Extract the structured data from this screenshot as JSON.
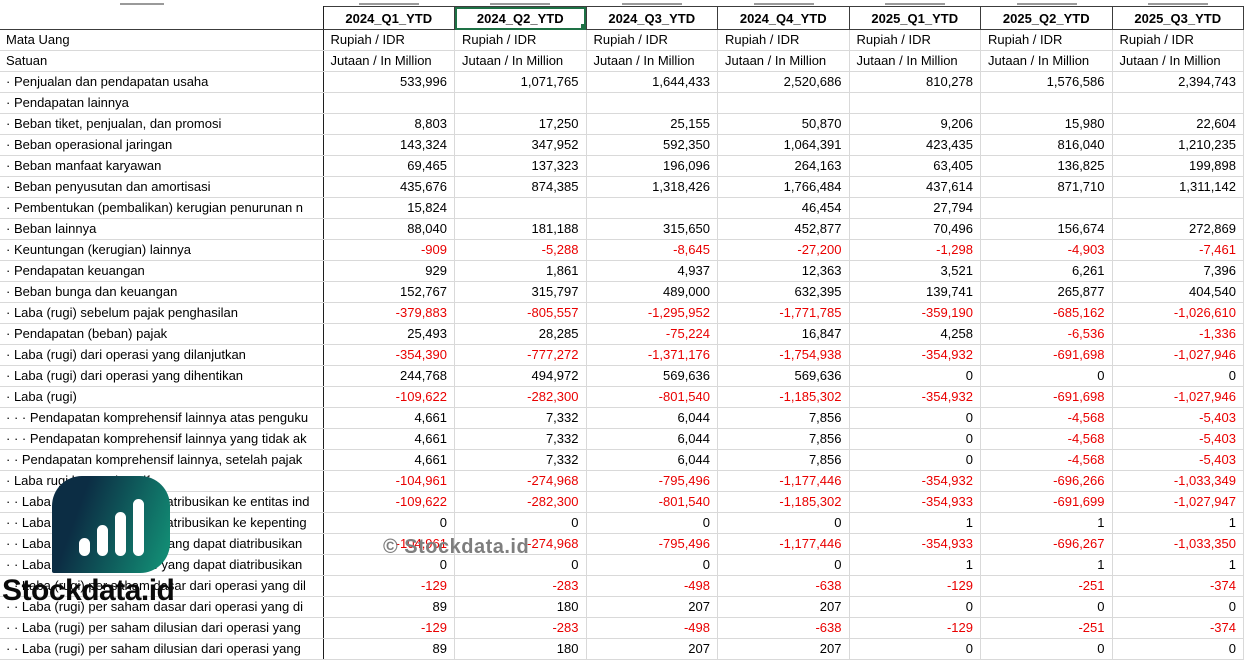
{
  "watermark": "© Stockdata.id",
  "logo": {
    "text": "Stockdata.id"
  },
  "colors": {
    "negative": "#e90000",
    "selection": "#1e7145",
    "grid": "#d9d9d9",
    "dark_border": "#3c3c3c",
    "label_divider": "#1f1f1f",
    "watermark": "#7e7e7e",
    "logo_navy": "#0c2d44",
    "logo_teal": "#128a73",
    "logo_text": "#0a0a0a"
  },
  "table": {
    "columns": [
      "2024_Q1_YTD",
      "2024_Q2_YTD",
      "2024_Q3_YTD",
      "2024_Q4_YTD",
      "2025_Q1_YTD",
      "2025_Q2_YTD",
      "2025_Q3_YTD"
    ],
    "selected_column": "2024_Q2_YTD",
    "meta_rows": [
      {
        "label": "Mata Uang",
        "values": [
          "Rupiah / IDR",
          "Rupiah / IDR",
          "Rupiah / IDR",
          "Rupiah / IDR",
          "Rupiah / IDR",
          "Rupiah / IDR",
          "Rupiah / IDR"
        ]
      },
      {
        "label": "Satuan",
        "values": [
          "Jutaan / In Million",
          "Jutaan / In Million",
          "Jutaan / In Million",
          "Jutaan / In Million",
          "Jutaan / In Million",
          "Jutaan / In Million",
          "Jutaan / In Million"
        ]
      }
    ],
    "rows": [
      {
        "label": "· Penjualan dan pendapatan usaha",
        "values": [
          "533,996",
          "1,071,765",
          "1,644,433",
          "2,520,686",
          "810,278",
          "1,576,586",
          "2,394,743"
        ]
      },
      {
        "label": "· Pendapatan lainnya",
        "values": [
          "",
          "",
          "",
          "",
          "",
          "",
          ""
        ]
      },
      {
        "label": "· Beban tiket, penjualan, dan promosi",
        "values": [
          "8,803",
          "17,250",
          "25,155",
          "50,870",
          "9,206",
          "15,980",
          "22,604"
        ]
      },
      {
        "label": "· Beban operasional jaringan",
        "values": [
          "143,324",
          "347,952",
          "592,350",
          "1,064,391",
          "423,435",
          "816,040",
          "1,210,235"
        ]
      },
      {
        "label": "· Beban manfaat karyawan",
        "values": [
          "69,465",
          "137,323",
          "196,096",
          "264,163",
          "63,405",
          "136,825",
          "199,898"
        ]
      },
      {
        "label": "· Beban penyusutan dan amortisasi",
        "values": [
          "435,676",
          "874,385",
          "1,318,426",
          "1,766,484",
          "437,614",
          "871,710",
          "1,311,142"
        ]
      },
      {
        "label": "· Pembentukan (pembalikan) kerugian penurunan n",
        "values": [
          "15,824",
          "",
          "",
          "46,454",
          "27,794",
          "",
          ""
        ]
      },
      {
        "label": "· Beban lainnya",
        "values": [
          "88,040",
          "181,188",
          "315,650",
          "452,877",
          "70,496",
          "156,674",
          "272,869"
        ]
      },
      {
        "label": "· Keuntungan (kerugian) lainnya",
        "values": [
          "-909",
          "-5,288",
          "-8,645",
          "-27,200",
          "-1,298",
          "-4,903",
          "-7,461"
        ]
      },
      {
        "label": "· Pendapatan keuangan",
        "values": [
          "929",
          "1,861",
          "4,937",
          "12,363",
          "3,521",
          "6,261",
          "7,396"
        ]
      },
      {
        "label": "· Beban bunga dan keuangan",
        "values": [
          "152,767",
          "315,797",
          "489,000",
          "632,395",
          "139,741",
          "265,877",
          "404,540"
        ]
      },
      {
        "label": "· Laba (rugi) sebelum pajak penghasilan",
        "values": [
          "-379,883",
          "-805,557",
          "-1,295,952",
          "-1,771,785",
          "-359,190",
          "-685,162",
          "-1,026,610"
        ]
      },
      {
        "label": "· Pendapatan (beban) pajak",
        "values": [
          "25,493",
          "28,285",
          "-75,224",
          "16,847",
          "4,258",
          "-6,536",
          "-1,336"
        ]
      },
      {
        "label": "· Laba (rugi) dari operasi yang dilanjutkan",
        "values": [
          "-354,390",
          "-777,272",
          "-1,371,176",
          "-1,754,938",
          "-354,932",
          "-691,698",
          "-1,027,946"
        ]
      },
      {
        "label": "· Laba (rugi) dari operasi yang dihentikan",
        "values": [
          "244,768",
          "494,972",
          "569,636",
          "569,636",
          "0",
          "0",
          "0"
        ]
      },
      {
        "label": "· Laba (rugi)",
        "values": [
          "-109,622",
          "-282,300",
          "-801,540",
          "-1,185,302",
          "-354,932",
          "-691,698",
          "-1,027,946"
        ]
      },
      {
        "label": "· · · Pendapatan komprehensif lainnya atas penguku",
        "values": [
          "4,661",
          "7,332",
          "6,044",
          "7,856",
          "0",
          "-4,568",
          "-5,403"
        ]
      },
      {
        "label": "· · · Pendapatan komprehensif lainnya yang tidak ak",
        "values": [
          "4,661",
          "7,332",
          "6,044",
          "7,856",
          "0",
          "-4,568",
          "-5,403"
        ]
      },
      {
        "label": "· · Pendapatan komprehensif lainnya, setelah pajak",
        "values": [
          "4,661",
          "7,332",
          "6,044",
          "7,856",
          "0",
          "-4,568",
          "-5,403"
        ]
      },
      {
        "label": "· Laba rugi komprehensif",
        "values": [
          "-104,961",
          "-274,968",
          "-795,496",
          "-1,177,446",
          "-354,932",
          "-696,266",
          "-1,033,349"
        ]
      },
      {
        "label": "· · Laba (rugi) yang dapat diatribusikan ke entitas ind",
        "values": [
          "-109,622",
          "-282,300",
          "-801,540",
          "-1,185,302",
          "-354,933",
          "-691,699",
          "-1,027,947"
        ]
      },
      {
        "label": "· · Laba (rugi) yang dapat diatribusikan ke kepenting",
        "values": [
          "0",
          "0",
          "0",
          "0",
          "1",
          "1",
          "1"
        ]
      },
      {
        "label": "· · Laba rugi komprehensif yang dapat diatribusikan",
        "values": [
          "-104,961",
          "-274,968",
          "-795,496",
          "-1,177,446",
          "-354,933",
          "-696,267",
          "-1,033,350"
        ]
      },
      {
        "label": "· · Laba rugi komprehensif yang dapat diatribusikan",
        "values": [
          "0",
          "0",
          "0",
          "0",
          "1",
          "1",
          "1"
        ]
      },
      {
        "label": "· · Laba (rugi) per saham dasar dari operasi yang dil",
        "values": [
          "-129",
          "-283",
          "-498",
          "-638",
          "-129",
          "-251",
          "-374"
        ]
      },
      {
        "label": "· · Laba (rugi) per saham dasar dari operasi yang di",
        "values": [
          "89",
          "180",
          "207",
          "207",
          "0",
          "0",
          "0"
        ]
      },
      {
        "label": "· · Laba (rugi) per saham dilusian dari operasi yang",
        "values": [
          "-129",
          "-283",
          "-498",
          "-638",
          "-129",
          "-251",
          "-374"
        ]
      },
      {
        "label": "· · Laba (rugi) per saham dilusian dari operasi yang",
        "values": [
          "89",
          "180",
          "207",
          "207",
          "0",
          "0",
          "0"
        ]
      }
    ]
  }
}
